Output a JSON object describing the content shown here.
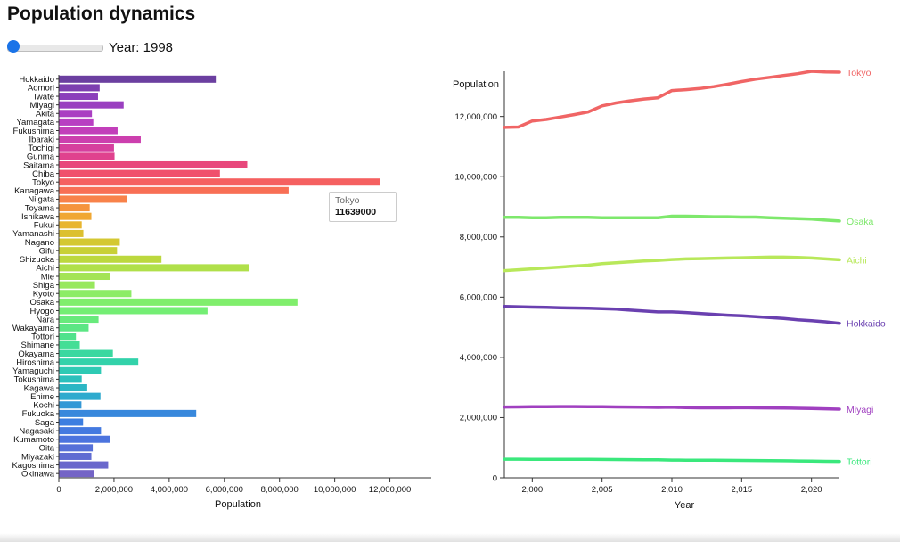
{
  "page": {
    "title": "Population dynamics"
  },
  "controls": {
    "year_label": "Year: 1998",
    "year_value": 1998,
    "year_min": 1998,
    "year_max": 2022
  },
  "tooltip": {
    "name": "Tokyo",
    "value": "11639000"
  },
  "chart_data": [
    {
      "type": "bar",
      "orientation": "horizontal",
      "xlabel": "Population",
      "xlim": [
        0,
        13500000
      ],
      "xticks": [
        0,
        2000000,
        4000000,
        6000000,
        8000000,
        10000000,
        12000000
      ],
      "xtick_labels": [
        "0",
        "2,000,000",
        "4,000,000",
        "6,000,000",
        "8,000,000",
        "10,000,000",
        "12,000,000"
      ],
      "categories": [
        "Hokkaido",
        "Aomori",
        "Iwate",
        "Miyagi",
        "Akita",
        "Yamagata",
        "Fukushima",
        "Ibaraki",
        "Tochigi",
        "Gunma",
        "Saitama",
        "Chiba",
        "Tokyo",
        "Kanagawa",
        "Niigata",
        "Toyama",
        "Ishikawa",
        "Fukui",
        "Yamanashi",
        "Nagano",
        "Gifu",
        "Shizuoka",
        "Aichi",
        "Mie",
        "Shiga",
        "Kyoto",
        "Osaka",
        "Hyogo",
        "Nara",
        "Wakayama",
        "Tottori",
        "Shimane",
        "Okayama",
        "Hiroshima",
        "Yamaguchi",
        "Tokushima",
        "Kagawa",
        "Ehime",
        "Kochi",
        "Fukuoka",
        "Saga",
        "Nagasaki",
        "Kumamoto",
        "Oita",
        "Miyazaki",
        "Kagoshima",
        "Okinawa"
      ],
      "values": [
        5690000,
        1480000,
        1420000,
        2350000,
        1200000,
        1250000,
        2130000,
        2970000,
        2000000,
        2020000,
        6830000,
        5840000,
        11639000,
        8330000,
        2480000,
        1120000,
        1180000,
        830000,
        890000,
        2210000,
        2110000,
        3720000,
        6880000,
        1850000,
        1310000,
        2630000,
        8650000,
        5390000,
        1440000,
        1080000,
        620000,
        760000,
        1960000,
        2880000,
        1530000,
        830000,
        1030000,
        1510000,
        820000,
        4980000,
        880000,
        1530000,
        1860000,
        1230000,
        1180000,
        1790000,
        1290000
      ],
      "colors": [
        "#6b3fa0",
        "#7d3fb0",
        "#8b3fbb",
        "#9a3fc0",
        "#aa3fc2",
        "#b83fc2",
        "#c23fba",
        "#cc3fae",
        "#d63f9e",
        "#e0428e",
        "#e8487c",
        "#f0506c",
        "#f56060",
        "#f86f55",
        "#f8824a",
        "#f5943d",
        "#f0a733",
        "#e8b52e",
        "#dcc030",
        "#d4c832",
        "#c8d036",
        "#bcd83e",
        "#b0e04a",
        "#a4e455",
        "#98e85e",
        "#8cec66",
        "#80ee6c",
        "#74ee74",
        "#68ea7c",
        "#5ce684",
        "#50e28c",
        "#44de96",
        "#3ad8a0",
        "#32d2aa",
        "#2ecab4",
        "#2cc0bc",
        "#2cb6c4",
        "#2eaace",
        "#3298d6",
        "#3888dc",
        "#3c7ee0",
        "#447ae0",
        "#4c74de",
        "#5670d8",
        "#606cd2",
        "#6a68cc",
        "#7464c6"
      ]
    },
    {
      "type": "line",
      "xlabel": "Year",
      "ylabel": "Population",
      "xlim": [
        1998,
        2022
      ],
      "ylim": [
        0,
        13500000
      ],
      "xticks": [
        2000,
        2005,
        2010,
        2015,
        2020
      ],
      "xtick_labels": [
        "2,000",
        "2,005",
        "2,010",
        "2,015",
        "2,020"
      ],
      "yticks": [
        0,
        2000000,
        4000000,
        6000000,
        8000000,
        10000000,
        12000000
      ],
      "ytick_labels": [
        "0",
        "2,000,000",
        "4,000,000",
        "6,000,000",
        "8,000,000",
        "10,000,000",
        "12,000,000"
      ],
      "x": [
        1998,
        1999,
        2000,
        2001,
        2002,
        2003,
        2004,
        2005,
        2006,
        2007,
        2008,
        2009,
        2010,
        2011,
        2012,
        2013,
        2014,
        2015,
        2016,
        2017,
        2018,
        2019,
        2020,
        2021,
        2022
      ],
      "series": [
        {
          "name": "Tokyo",
          "color": "#f06565",
          "values": [
            11639000,
            11650000,
            11850000,
            11900000,
            11980000,
            12060000,
            12150000,
            12350000,
            12450000,
            12520000,
            12580000,
            12620000,
            12860000,
            12890000,
            12930000,
            12990000,
            13070000,
            13160000,
            13240000,
            13300000,
            13360000,
            13420000,
            13500000,
            13480000,
            13470000
          ]
        },
        {
          "name": "Osaka",
          "color": "#7ee86c",
          "values": [
            8650000,
            8650000,
            8640000,
            8640000,
            8650000,
            8650000,
            8650000,
            8640000,
            8640000,
            8640000,
            8640000,
            8640000,
            8690000,
            8690000,
            8680000,
            8670000,
            8670000,
            8660000,
            8660000,
            8640000,
            8620000,
            8610000,
            8590000,
            8560000,
            8530000
          ]
        },
        {
          "name": "Aichi",
          "color": "#b8e85a",
          "values": [
            6880000,
            6910000,
            6940000,
            6970000,
            7000000,
            7030000,
            7060000,
            7110000,
            7140000,
            7170000,
            7200000,
            7220000,
            7250000,
            7270000,
            7280000,
            7290000,
            7300000,
            7310000,
            7320000,
            7330000,
            7330000,
            7320000,
            7300000,
            7270000,
            7240000
          ]
        },
        {
          "name": "Hokkaido",
          "color": "#6a40b0",
          "values": [
            5690000,
            5680000,
            5670000,
            5660000,
            5650000,
            5640000,
            5630000,
            5620000,
            5600000,
            5570000,
            5540000,
            5510000,
            5510000,
            5490000,
            5460000,
            5430000,
            5400000,
            5380000,
            5350000,
            5320000,
            5290000,
            5250000,
            5220000,
            5180000,
            5130000
          ]
        },
        {
          "name": "Miyagi",
          "color": "#a040c0",
          "values": [
            2350000,
            2355000,
            2360000,
            2362000,
            2365000,
            2365000,
            2363000,
            2360000,
            2355000,
            2350000,
            2345000,
            2340000,
            2345000,
            2330000,
            2325000,
            2325000,
            2325000,
            2330000,
            2325000,
            2320000,
            2315000,
            2310000,
            2300000,
            2290000,
            2280000
          ]
        },
        {
          "name": "Tottori",
          "color": "#3ae87c",
          "values": [
            620000,
            618000,
            617000,
            616000,
            615000,
            614000,
            612000,
            610000,
            607000,
            604000,
            600000,
            597000,
            589000,
            587000,
            585000,
            582000,
            579000,
            576000,
            573000,
            570000,
            566000,
            561000,
            553000,
            549000,
            544000
          ]
        }
      ]
    }
  ]
}
